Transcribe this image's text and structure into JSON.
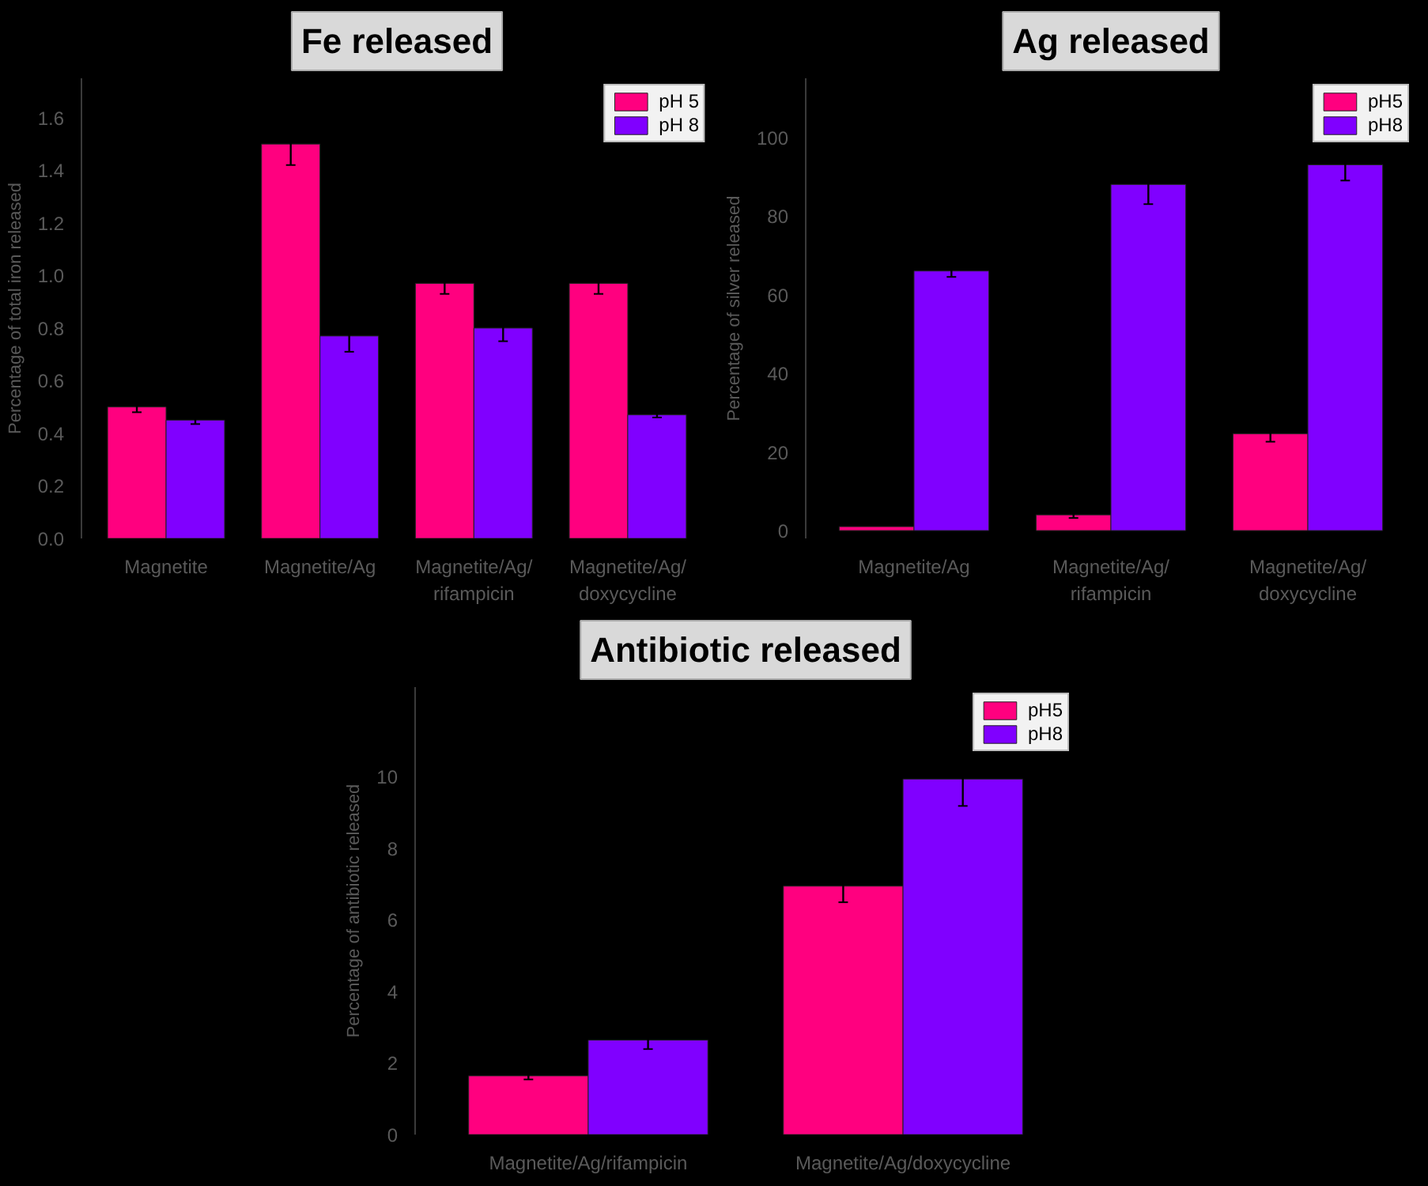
{
  "chart_data": [
    {
      "type": "bar",
      "title": "Fe released",
      "ylabel": "Percentage of total iron released",
      "categories": [
        "Magnetite",
        "Magnetite/Ag",
        "Magnetite/Ag/\nrifampicin",
        "Magnetite/Ag/\ndoxycycline"
      ],
      "series": [
        {
          "name": "pH 5",
          "color": "#ff007f",
          "values": [
            0.5,
            1.5,
            0.97,
            0.97
          ],
          "errors": [
            0.02,
            0.08,
            0.04,
            0.04
          ]
        },
        {
          "name": "pH 8",
          "color": "#8000ff",
          "values": [
            0.45,
            0.77,
            0.8,
            0.47
          ],
          "errors": [
            0.015,
            0.06,
            0.05,
            0.01
          ]
        }
      ],
      "ylim": [
        0,
        1.75
      ],
      "yticks": [
        {
          "value": 0,
          "label": "0.0"
        },
        {
          "value": 0.2,
          "label": "0.2"
        },
        {
          "value": 0.4,
          "label": "0.4"
        },
        {
          "value": 0.6,
          "label": "0.6"
        },
        {
          "value": 0.8,
          "label": "0.8"
        },
        {
          "value": 1.0,
          "label": "1.0"
        },
        {
          "value": 1.2,
          "label": "1.2"
        },
        {
          "value": 1.4,
          "label": "1.4"
        },
        {
          "value": 1.6,
          "label": "1.6"
        }
      ],
      "legend": "top right",
      "grid": false
    },
    {
      "type": "bar",
      "title": "Ag released",
      "ylabel": "Percentage of silver released",
      "categories": [
        "Magnetite/Ag",
        "Magnetite/Ag/\nrifampicin",
        "Magnetite/Ag/\ndoxycycline"
      ],
      "series": [
        {
          "name": "pH5",
          "color": "#ff007f",
          "values": [
            1,
            4,
            24.6
          ],
          "errors": [
            null,
            0.8,
            2
          ]
        },
        {
          "name": "pH8",
          "color": "#8000ff",
          "values": [
            66,
            88,
            93
          ],
          "errors": [
            1.5,
            5,
            4
          ]
        }
      ],
      "ylim": [
        -2,
        115
      ],
      "yticks": [
        0,
        20,
        40,
        60,
        80,
        100
      ],
      "legend": "top right",
      "grid": false
    },
    {
      "type": "bar",
      "title": "Antibiotic released",
      "ylabel": "Percentage of antibiotic released",
      "categories": [
        "Magnetite/Ag/rifampicin",
        "Magnetite/Ag/doxycycline"
      ],
      "series": [
        {
          "name": "pH5",
          "color": "#ff007f",
          "values": [
            1.64,
            6.94
          ],
          "errors": [
            0.1,
            0.45
          ]
        },
        {
          "name": "pH8",
          "color": "#8000ff",
          "values": [
            2.64,
            9.93
          ],
          "errors": [
            0.25,
            0.75
          ]
        }
      ],
      "ylim": [
        0,
        12.5
      ],
      "yticks": [
        0,
        2,
        4,
        6,
        8,
        10
      ],
      "legend": "top right",
      "grid": false
    }
  ]
}
